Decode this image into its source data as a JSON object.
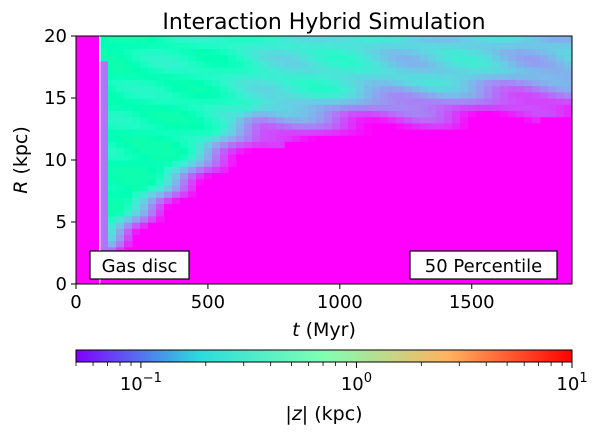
{
  "chart_data": {
    "type": "heatmap",
    "title": "Interaction Hybrid Simulation",
    "xlabel": "t (Myr)",
    "ylabel": "R (kpc)",
    "xlim": [
      0,
      1880
    ],
    "ylim": [
      0,
      20
    ],
    "xticks": [
      0,
      500,
      1000,
      1500
    ],
    "yticks": [
      0,
      5,
      10,
      15,
      20
    ],
    "annotations": [
      "Gas disc",
      "50 Percentile"
    ],
    "vline": {
      "t": 90,
      "color": "#ffffff"
    },
    "colorbar": {
      "label": "|z| (kpc)",
      "scale": "log",
      "range": [
        0.05,
        10
      ],
      "ticks": [
        {
          "value": 0.1,
          "base": "10",
          "exp": "−1"
        },
        {
          "value": 1,
          "base": "10",
          "exp": "0"
        },
        {
          "value": 10,
          "base": "10",
          "exp": "1"
        }
      ],
      "cmap": "rainbow"
    },
    "z_background": 0.05,
    "z_max": 0.8
  }
}
